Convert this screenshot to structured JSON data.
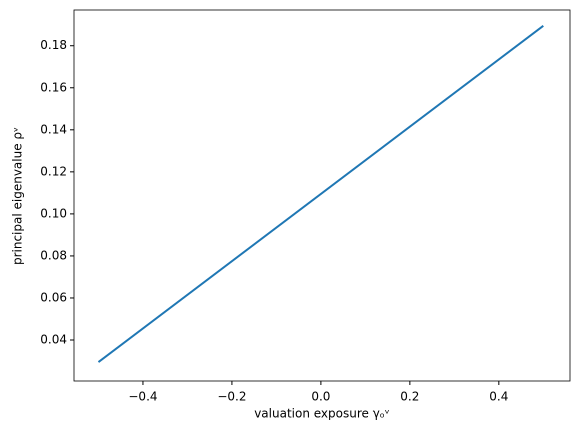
{
  "chart_data": {
    "type": "line",
    "x_label": "valuation exposure γₒᵛ",
    "y_label": "principal eigenvalue ρᵛ",
    "x": [
      -0.5,
      0.5
    ],
    "series": [
      {
        "color": "#1f77b4",
        "values": [
          0.0295,
          0.1895
        ]
      }
    ],
    "xlim": [
      -0.555,
      0.56
    ],
    "ylim": [
      0.0205,
      0.197
    ],
    "xticks": [
      {
        "value": -0.4,
        "label": "−0.4"
      },
      {
        "value": -0.2,
        "label": "−0.2"
      },
      {
        "value": 0,
        "label": "0.0"
      },
      {
        "value": 0.2,
        "label": "0.2"
      },
      {
        "value": 0.4,
        "label": "0.4"
      }
    ],
    "yticks": [
      0.04,
      0.06,
      0.08,
      {
        "value": 0.1,
        "label": "0.10"
      },
      0.12,
      0.14,
      0.16,
      0.18
    ]
  }
}
